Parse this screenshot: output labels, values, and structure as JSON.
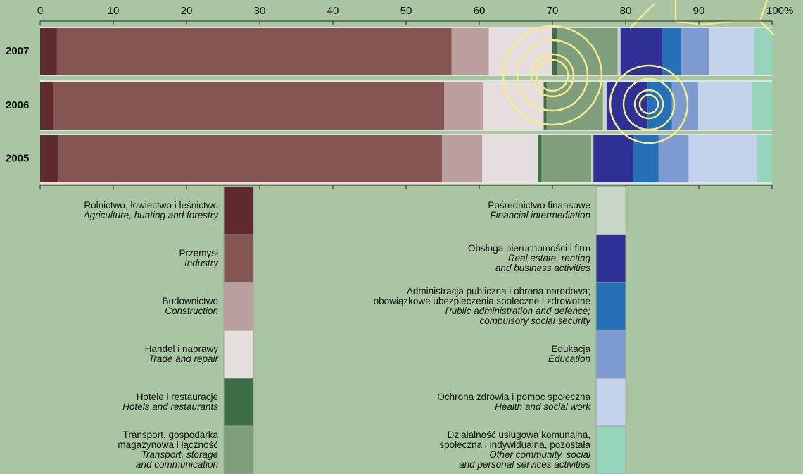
{
  "chart_data": {
    "type": "stacked-bar-horizontal",
    "categories": [
      "2007",
      "2006",
      "2005"
    ],
    "xlim": [
      0,
      100
    ],
    "xticks": [
      0,
      10,
      20,
      30,
      40,
      50,
      60,
      70,
      80,
      90,
      {
        "value": 100,
        "label": "100%"
      }
    ],
    "series": [
      {
        "name": "Rolnictwo, łowiectwo i leśnictwo",
        "name_en": "Agriculture, hunting and forestry",
        "color": "#5e2a2b",
        "values": [
          2.3,
          1.8,
          2.5
        ]
      },
      {
        "name": "Przemysł",
        "name_en": "Industry",
        "color": "#845553",
        "values": [
          53.9,
          53.4,
          52.4
        ]
      },
      {
        "name": "Budownictwo",
        "name_en": "Construction",
        "color": "#bb9e9e",
        "values": [
          5.1,
          5.4,
          5.5
        ]
      },
      {
        "name": "Handel i naprawy",
        "name_en": "Trade and repair",
        "color": "#e6dede",
        "values": [
          8.7,
          8.2,
          7.6
        ]
      },
      {
        "name": "Hotele i restauracje",
        "name_en": "Hotels and restaurants",
        "color": "#3e6e45",
        "values": [
          0.7,
          0.4,
          0.5
        ]
      },
      {
        "name": "Transport, gospodarka\nmagazynowa i łączność",
        "name_en": "Transport, storage\nand communication",
        "color": "#7e9e7c",
        "values": [
          8.2,
          7.7,
          6.8
        ]
      },
      {
        "name": "Pośrednictwo finansowe",
        "name_en": "Financial intermediation",
        "color": "#c8d6c8",
        "values": [
          0.4,
          0.5,
          0.3
        ]
      },
      {
        "name": "Obsługa nieruchomości i firm",
        "name_en": "Real estate, renting\nand business activities",
        "color": "#2e3096",
        "values": [
          5.7,
          5.6,
          5.4
        ]
      },
      {
        "name": "Administracja publiczna i obrona narodowa;\nobowiązkowe ubezpieczenia społeczne i zdrowotne",
        "name_en": "Public administration and defence;\ncompulsory social security",
        "color": "#2670b8",
        "values": [
          2.6,
          3.3,
          3.5
        ]
      },
      {
        "name": "Edukacja",
        "name_en": "Education",
        "color": "#7d9bd0",
        "values": [
          3.8,
          3.6,
          4.1
        ]
      },
      {
        "name": "Ochrona zdrowia i pomoc społeczna",
        "name_en": "Health and social work",
        "color": "#c5d2ec",
        "values": [
          6.2,
          7.3,
          9.3
        ]
      },
      {
        "name": "Działalność usługowa komunalna,\nspołeczna i indywidualna, pozostała",
        "name_en": "Other community, social\nand personal services activities",
        "color": "#96d4bb",
        "values": [
          2.4,
          2.8,
          2.1
        ]
      }
    ]
  }
}
